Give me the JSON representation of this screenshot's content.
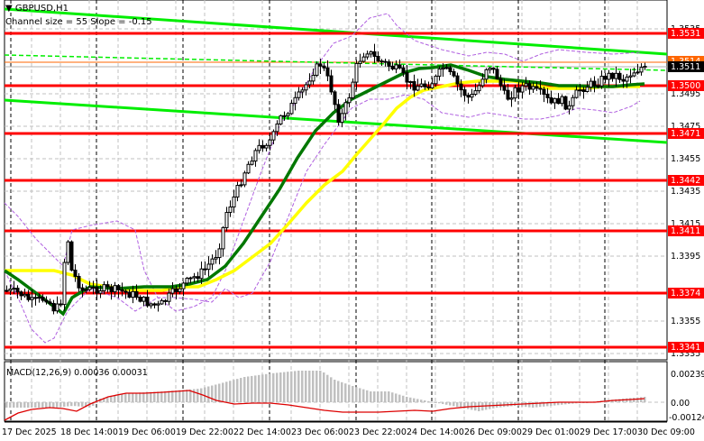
{
  "header": {
    "symbol_label": "GBPUSD,H1",
    "channel_info": "Channel size = 55 Slope = -0.15"
  },
  "macd": {
    "label": "MACD(12,26,9) 0.00036 0.00031",
    "axis": [
      "0.00239",
      "0.00",
      "-0.00124"
    ]
  },
  "price_axis": {
    "ticks": [
      "1.3535",
      "1.3495",
      "1.3475",
      "1.3455",
      "1.3435",
      "1.3415",
      "1.3395",
      "1.3355",
      "1.3335"
    ],
    "current_price": "1.3511",
    "ask_price": "1.3514"
  },
  "levels": [
    "1.3531",
    "1.3500",
    "1.3471",
    "1.3442",
    "1.3411",
    "1.3374",
    "1.3341"
  ],
  "time_axis": [
    "17 Dec 2025",
    "18 Dec 14:00",
    "19 Dec 06:00",
    "19 Dec 22:00",
    "22 Dec 14:00",
    "23 Dec 06:00",
    "23 Dec 22:00",
    "24 Dec 14:00",
    "26 Dec 09:00",
    "29 Dec 01:00",
    "29 Dec 17:00",
    "30 Dec 09:00"
  ],
  "colors": {
    "level_line": "#ff0000",
    "channel_line": "#00ee00",
    "ma_fast": "#007700",
    "ma_slow": "#ffff00",
    "bollinger": "#b060e0",
    "macd_signal": "#dd0000",
    "macd_hist": "#c0c0c0",
    "ask_line": "#ff6600"
  },
  "chart_data": {
    "type": "candlestick",
    "title": "GBPUSD,H1",
    "subtitle": "Channel size = 55 Slope = -0.15",
    "xlabel": "",
    "ylabel": "",
    "ylim": [
      1.3325,
      1.3545
    ],
    "x_ticks": [
      "17 Dec 2025",
      "18 Dec 14:00",
      "19 Dec 06:00",
      "19 Dec 22:00",
      "22 Dec 14:00",
      "23 Dec 06:00",
      "23 Dec 22:00",
      "24 Dec 14:00",
      "26 Dec 09:00",
      "29 Dec 01:00",
      "29 Dec 17:00",
      "30 Dec 09:00"
    ],
    "y_ticks": [
      1.3535,
      1.3495,
      1.3475,
      1.3455,
      1.3435,
      1.3415,
      1.3395,
      1.3355,
      1.3335
    ],
    "horizontal_levels": [
      1.3531,
      1.35,
      1.3471,
      1.3442,
      1.3411,
      1.3374,
      1.3341
    ],
    "current_price": 1.3511,
    "ask_price": 1.3514,
    "price_path_approx": {
      "x": [
        "17 Dec 2025",
        "18 Dec 14:00",
        "19 Dec 06:00",
        "19 Dec 22:00",
        "22 Dec 14:00",
        "23 Dec 06:00",
        "23 Dec 22:00",
        "24 Dec 14:00",
        "26 Dec 09:00",
        "29 Dec 01:00",
        "29 Dec 17:00",
        "30 Dec 09:00"
      ],
      "close": [
        1.3372,
        1.338,
        1.3376,
        1.3378,
        1.347,
        1.3505,
        1.3512,
        1.35,
        1.3495,
        1.3492,
        1.3505,
        1.3511
      ]
    },
    "series": [
      {
        "name": "MA fast (green)",
        "values": [
          1.339,
          1.3372,
          1.3374,
          1.3378,
          1.3425,
          1.3478,
          1.3498,
          1.3505,
          1.35,
          1.35,
          1.35,
          1.3504
        ]
      },
      {
        "name": "MA slow (yellow)",
        "values": [
          1.3385,
          1.3385,
          1.3378,
          1.3375,
          1.3395,
          1.344,
          1.3482,
          1.35,
          1.35,
          1.3502,
          1.3498,
          1.3503
        ]
      }
    ],
    "channel": {
      "upper_start": 1.3545,
      "upper_end": 1.352,
      "lower_start": 1.349,
      "lower_end": 1.3467,
      "slope": -0.15,
      "size": 55
    },
    "macd": {
      "params": "12,26,9",
      "main": 0.00036,
      "signal": 0.00031,
      "ylim": [
        -0.00124,
        0.00239
      ]
    },
    "legend": []
  }
}
